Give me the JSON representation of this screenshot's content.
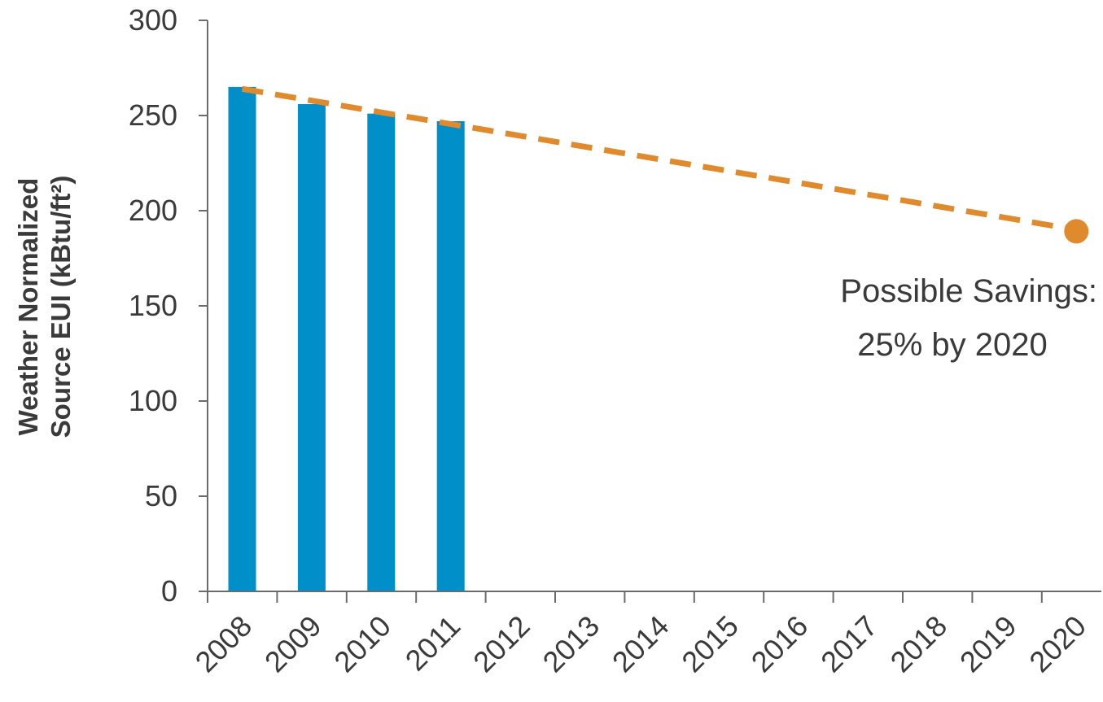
{
  "chart_data": {
    "type": "bar",
    "ylabel_lines": [
      "Weather Normalized",
      "Source EUI (kBtu/ft²)"
    ],
    "xlabel": "",
    "categories": [
      "2008",
      "2009",
      "2010",
      "2011",
      "2012",
      "2013",
      "2014",
      "2015",
      "2016",
      "2017",
      "2018",
      "2019",
      "2020"
    ],
    "ylim": [
      0,
      300
    ],
    "yticks": [
      "0",
      "50",
      "100",
      "150",
      "200",
      "250",
      "300"
    ],
    "grid": false,
    "series": [
      {
        "values": [
          265,
          256,
          251,
          247,
          null,
          null,
          null,
          null,
          null,
          null,
          null,
          null,
          null
        ],
        "color": "#008fc8"
      }
    ],
    "trend": {
      "style": "dashed",
      "color": "#e08a2e",
      "start": {
        "x": "2008",
        "y": 264
      },
      "end": {
        "x": "2020",
        "y": 190
      },
      "end_marker": "dot"
    },
    "annotation": {
      "lines": [
        "Possible Savings:",
        "25% by 2020"
      ],
      "placement": "right, below trend end point"
    }
  }
}
